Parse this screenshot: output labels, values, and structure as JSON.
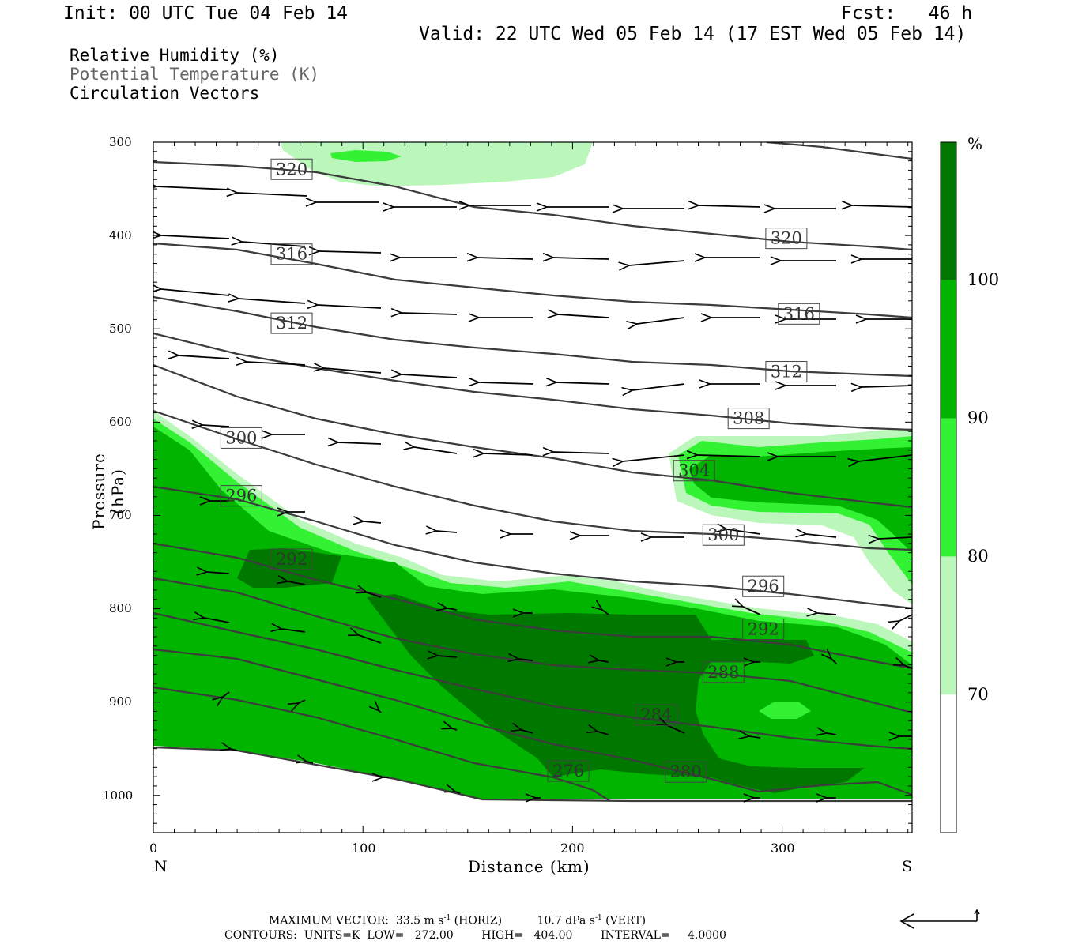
{
  "header": {
    "init": "Init: 00 UTC Tue 04 Feb 14",
    "fcst": "Fcst:   46 h",
    "valid": "Valid: 22 UTC Wed 05 Feb 14 (17 EST Wed 05 Feb 14)"
  },
  "legend": {
    "rh": "Relative Humidity (%)",
    "theta": "Potential Temperature (K)",
    "vectors": "Circulation Vectors"
  },
  "colors": {
    "rh70": "#bbf7bb",
    "rh80": "#33f233",
    "rh90": "#00b400",
    "rh100": "#007800",
    "contour": "#3c3c3c"
  },
  "chart_data": {
    "type": "cross-section",
    "xlabel": "Distance (km)",
    "ylabel": "Pressure (hPa)",
    "xlim": [
      0,
      362
    ],
    "ylim": [
      1040,
      300
    ],
    "x_ticks": [
      "0",
      "100",
      "200",
      "300"
    ],
    "y_ticks": [
      "300",
      "400",
      "500",
      "600",
      "700",
      "800",
      "900",
      "1000"
    ],
    "left_end_label": "N",
    "right_end_label": "S",
    "colorbar": {
      "unit": "%",
      "levels": [
        "70",
        "80",
        "90",
        "100"
      ],
      "bands": [
        {
          "from": 0,
          "to": 70,
          "color": "#ffffff"
        },
        {
          "from": 70,
          "to": 80,
          "color": "#bbf7bb"
        },
        {
          "from": 80,
          "to": 90,
          "color": "#33f233"
        },
        {
          "from": 90,
          "to": 100,
          "color": "#00b400"
        },
        {
          "from": 100,
          "to": 110,
          "color": "#007800"
        }
      ]
    },
    "theta_labels": [
      {
        "text": "320",
        "x": 66,
        "p": 329
      },
      {
        "text": "320",
        "x": 302,
        "p": 403
      },
      {
        "text": "316",
        "x": 66,
        "p": 420
      },
      {
        "text": "316",
        "x": 308,
        "p": 484
      },
      {
        "text": "312",
        "x": 66,
        "p": 494
      },
      {
        "text": "312",
        "x": 302,
        "p": 546
      },
      {
        "text": "308",
        "x": 284,
        "p": 596
      },
      {
        "text": "304",
        "x": 258,
        "p": 652
      },
      {
        "text": "300",
        "x": 42,
        "p": 617
      },
      {
        "text": "300",
        "x": 272,
        "p": 721
      },
      {
        "text": "296",
        "x": 42,
        "p": 679
      },
      {
        "text": "296",
        "x": 291,
        "p": 776
      },
      {
        "text": "292",
        "x": 66,
        "p": 747
      },
      {
        "text": "292",
        "x": 291,
        "p": 822
      },
      {
        "text": "288",
        "x": 272,
        "p": 868
      },
      {
        "text": "284",
        "x": 240,
        "p": 914
      },
      {
        "text": "280",
        "x": 254,
        "p": 975
      },
      {
        "text": "276",
        "x": 198,
        "p": 974
      }
    ],
    "footer": {
      "max_vector_label": "MAXIMUM VECTOR:",
      "max_vector_horiz": "33.5 m s",
      "horiz_tag": " (HORIZ)",
      "max_vector_vert": "10.7 dPa s",
      "vert_tag": " (VERT)",
      "exponent": "-1",
      "contours": "CONTOURS:  UNITS=K  LOW=   272.00        HIGH=   404.00        INTERVAL=     4.0000"
    }
  }
}
